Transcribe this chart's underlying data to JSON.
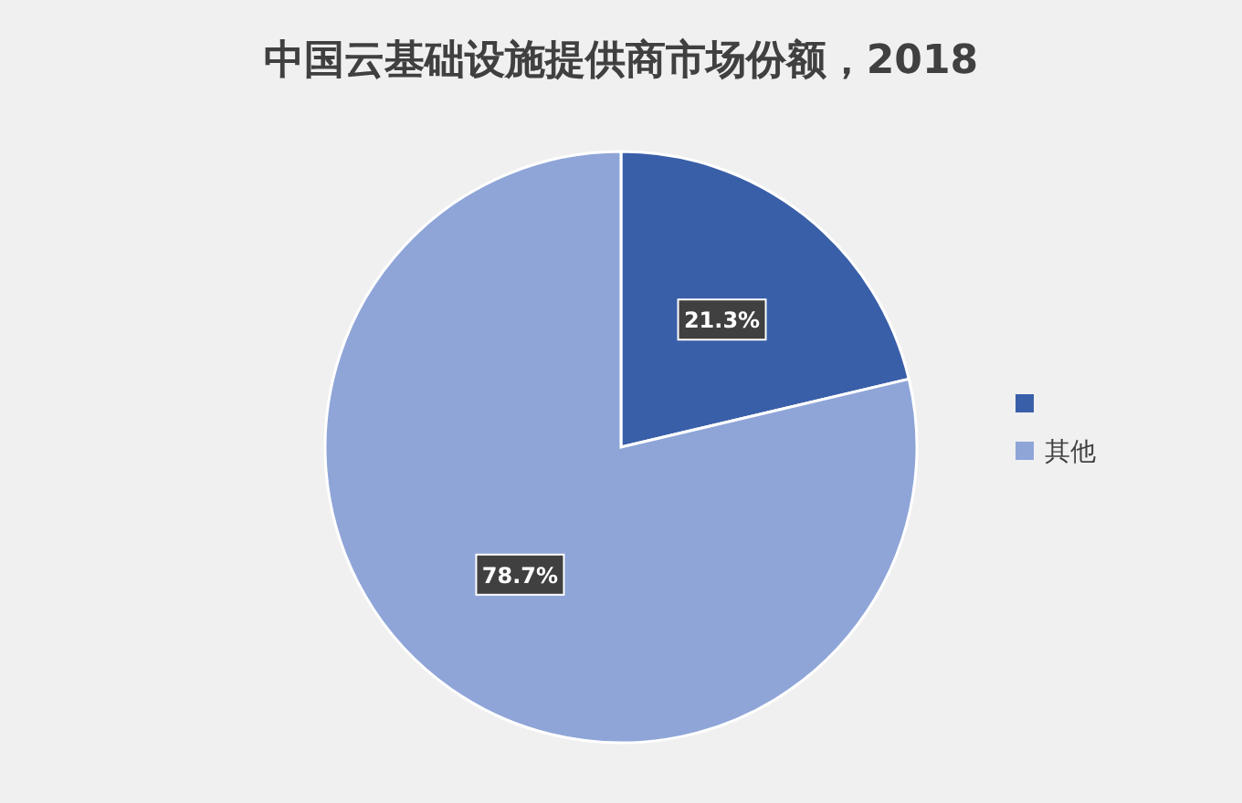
{
  "chart_data": {
    "type": "pie",
    "title": "中国云基础设施提供商市场份额，2018",
    "categories": [
      null,
      "其他"
    ],
    "values": [
      21.3,
      78.7
    ],
    "colors": [
      "#3a5fa9",
      "#8fa5d8"
    ],
    "value_labels": [
      "21.3%",
      "78.7%"
    ],
    "legend": "right"
  }
}
